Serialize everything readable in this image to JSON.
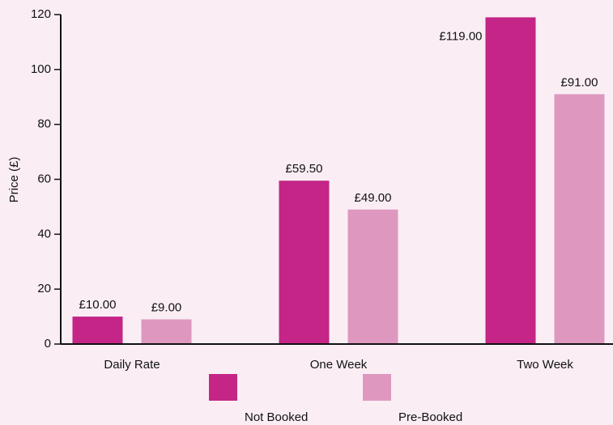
{
  "chart_data": {
    "type": "bar",
    "y_label": "Price (£)",
    "categories": [
      "Daily Rate",
      "One Week",
      "Two Week"
    ],
    "series": [
      {
        "name": "Not Booked",
        "color": "#c42587",
        "values": [
          10,
          59.5,
          119
        ],
        "value_labels": [
          "£10.00",
          "£59.50",
          "£119.00"
        ]
      },
      {
        "name": "Pre-Booked",
        "color": "#de98bf",
        "values": [
          9,
          49,
          91
        ],
        "value_labels": [
          "£9.00",
          "£49.00",
          "£91.00"
        ]
      }
    ],
    "ylim": [
      0,
      120
    ],
    "yticks": [
      0,
      20,
      40,
      60,
      80,
      100,
      120
    ],
    "legend": "bottom"
  }
}
